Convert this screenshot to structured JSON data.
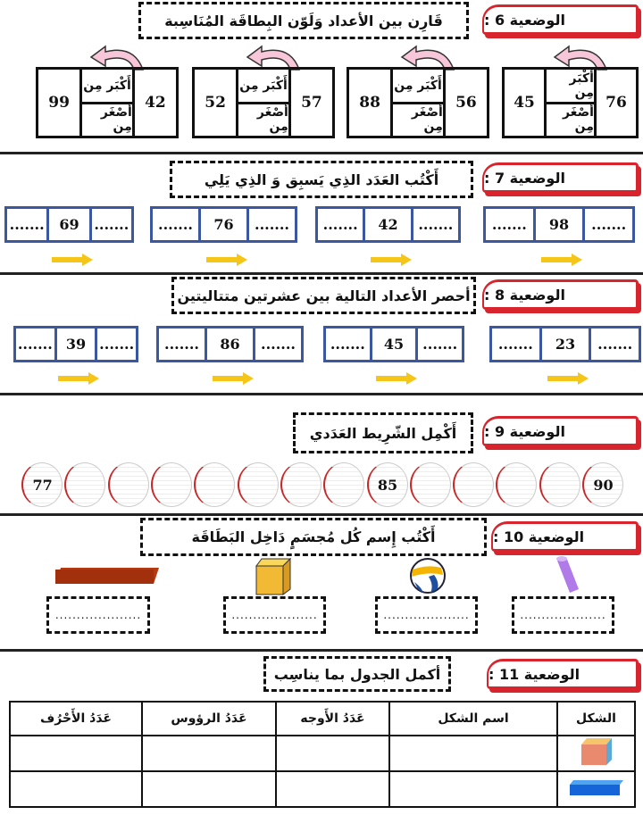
{
  "s6": {
    "tag": "الوضعية 6 :",
    "instruction": "قَارِن بين الأعداد وَلَوّن البِطاقَة المُنَاسِبة",
    "greater": "أَكْبَر مِن",
    "less": "أَصْغَر مِن",
    "cards": [
      {
        "right": "76",
        "left": "45"
      },
      {
        "right": "56",
        "left": "88"
      },
      {
        "right": "57",
        "left": "52"
      },
      {
        "right": "42",
        "left": "99"
      }
    ]
  },
  "s7": {
    "tag": "الوضعية 7 :",
    "instruction": "أَكْتُب العَدَد الذِي يَسبِق وَ الذِي يَلِي",
    "blank": ".......",
    "numbers": [
      "98",
      "42",
      "76",
      "69"
    ]
  },
  "s8": {
    "tag": "الوضعية 8 :",
    "instruction": "أحصر الأعداد التالية بين عشرتين متتاليتين",
    "blank": ".......",
    "numbers": [
      "23",
      "45",
      "86",
      "39"
    ]
  },
  "s9": {
    "tag": "الوضعية 9 :",
    "instruction": "أَكْمِل الشّرِيط العَدَدي",
    "circles": [
      "90",
      "",
      "",
      "",
      "",
      "85",
      "",
      "",
      "",
      "",
      "",
      "",
      "",
      "77"
    ]
  },
  "s10": {
    "tag": "الوضعية 10 :",
    "instruction": "أَكْتُب إِسم كُل مُجسَمٍ دَاخِل البَطَاقَة",
    "blank": "....................",
    "shapes": [
      "cylinder-image",
      "ball-image",
      "cube-image",
      "cuboid-image"
    ]
  },
  "s11": {
    "tag": "الوضعية 11 :",
    "instruction": "أكمل الجدول بما يناسِب",
    "headers": [
      "الشكل",
      "اسم الشكل",
      "عَدَدُ الأَوجه",
      "عَدَدُ الرؤوس",
      "عَدَدُ الأَحْرُف"
    ],
    "rows": [
      "cube-image",
      "cuboid-image"
    ]
  },
  "colors": {
    "accent_red": "#d8242c",
    "box_blue": "#3a57a0",
    "arrow_yellow": "#f5c518",
    "arc_pink": "#f7c6d8"
  }
}
